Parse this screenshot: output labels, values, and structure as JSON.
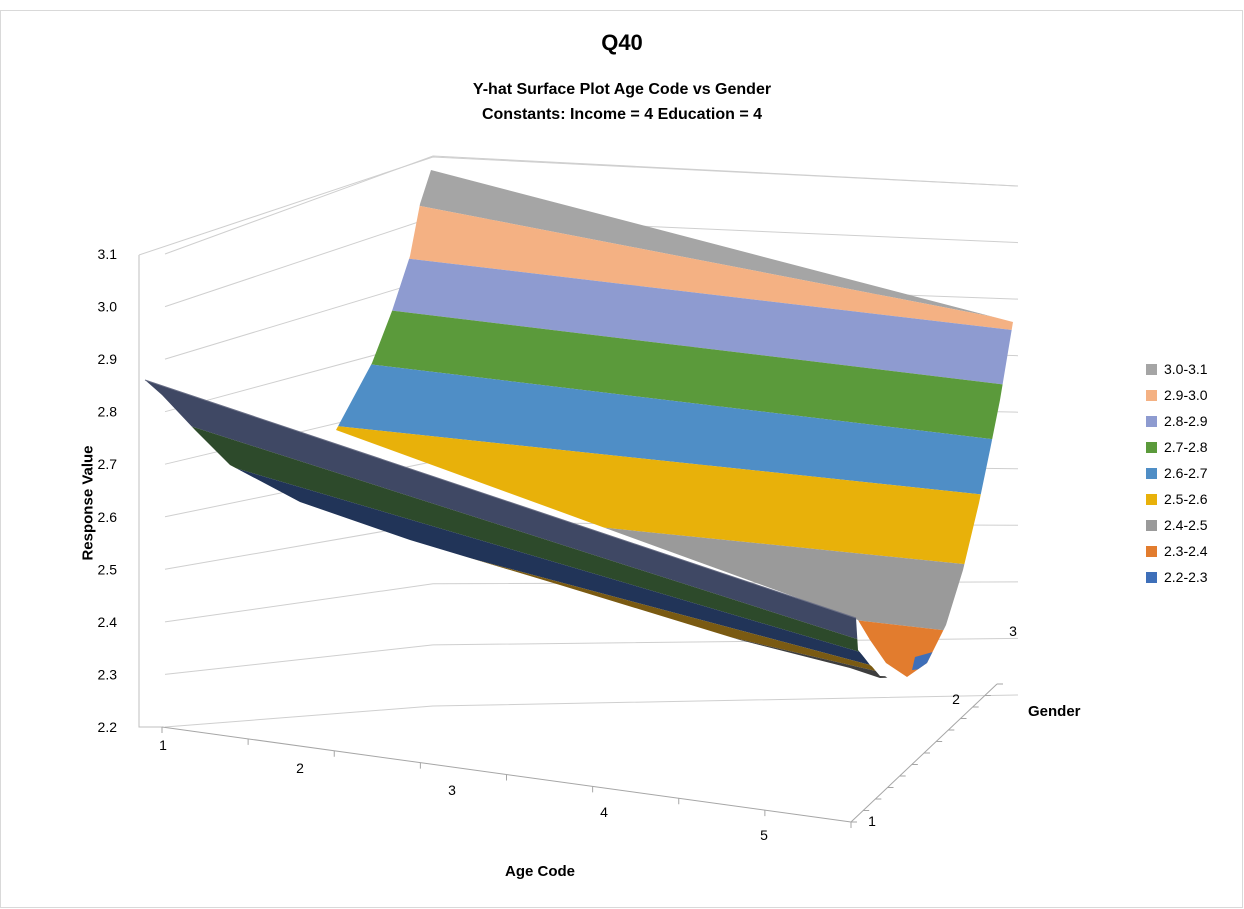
{
  "chart_data": {
    "type": "surface",
    "title": "Q40",
    "subtitle": "Y-hat Surface Plot  Age Code vs Gender",
    "constants_line": "Constants:   Income = 4  Education = 4",
    "xlabel": "Age Code",
    "ylabel": "Response Value",
    "zlabel": "Gender",
    "x_ticks": [
      "1",
      "2",
      "3",
      "4",
      "5"
    ],
    "z_ticks": [
      "1",
      "2",
      "3"
    ],
    "y_ticks": [
      "2.2",
      "2.3",
      "2.4",
      "2.5",
      "2.6",
      "2.7",
      "2.8",
      "2.9",
      "3.0",
      "3.1"
    ],
    "ylim": [
      2.2,
      3.1
    ],
    "x": [
      1,
      2,
      3,
      4,
      5
    ],
    "z": [
      1,
      2,
      3
    ],
    "values": [
      [
        2.87,
        2.63,
        2.52,
        2.41,
        2.3
      ],
      [
        2.78,
        2.54,
        2.43,
        2.32,
        2.21
      ],
      [
        3.1,
        2.92,
        2.8,
        2.68,
        2.57
      ]
    ],
    "legend_position": "right",
    "legend": [
      {
        "label": "3.0-3.1",
        "color": "#A5A5A5"
      },
      {
        "label": "2.9-3.0",
        "color": "#F4B183"
      },
      {
        "label": "2.8-2.9",
        "color": "#8E9BD0"
      },
      {
        "label": "2.7-2.8",
        "color": "#5B9A3B"
      },
      {
        "label": "2.6-2.7",
        "color": "#4F8EC6"
      },
      {
        "label": "2.5-2.6",
        "color": "#E8B10A"
      },
      {
        "label": "2.4-2.5",
        "color": "#9A9A9A"
      },
      {
        "label": "2.3-2.4",
        "color": "#E27C2E"
      },
      {
        "label": "2.2-2.3",
        "color": "#3E6FB9"
      }
    ]
  }
}
